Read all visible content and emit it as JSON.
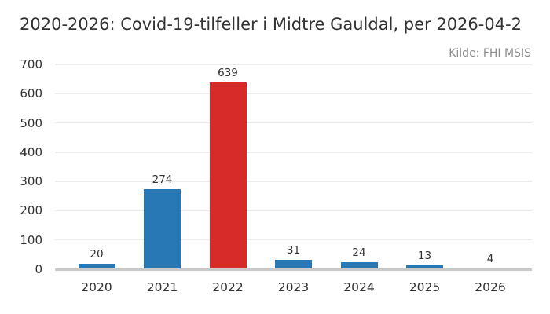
{
  "title": "2020-2026: Covid-19-tilfeller i Midtre Gauldal, per 2026-04-2",
  "source_note": "Kilde: FHI MSIS",
  "colors": {
    "bar_default": "#2878b5",
    "bar_highlight": "#d62b28",
    "gridline": "#ececec",
    "axis_line": "#c9c9c9",
    "text": "#333333",
    "muted_text": "#8d8d8d",
    "background": "#ffffff"
  },
  "chart_data": {
    "type": "bar",
    "title": "2020-2026: Covid-19-tilfeller i Midtre Gauldal, per 2026-04-2",
    "annotation": "Kilde: FHI MSIS",
    "categories": [
      "2020",
      "2021",
      "2022",
      "2023",
      "2024",
      "2025",
      "2026"
    ],
    "values": [
      20,
      274,
      639,
      31,
      24,
      13,
      4
    ],
    "value_labels_shown": true,
    "highlight_index": 2,
    "xlabel": "",
    "ylabel": "",
    "ylim": [
      0,
      700
    ],
    "yticks": [
      0,
      100,
      200,
      300,
      400,
      500,
      600,
      700
    ],
    "grid": "horizontal",
    "legend_position": "none"
  }
}
